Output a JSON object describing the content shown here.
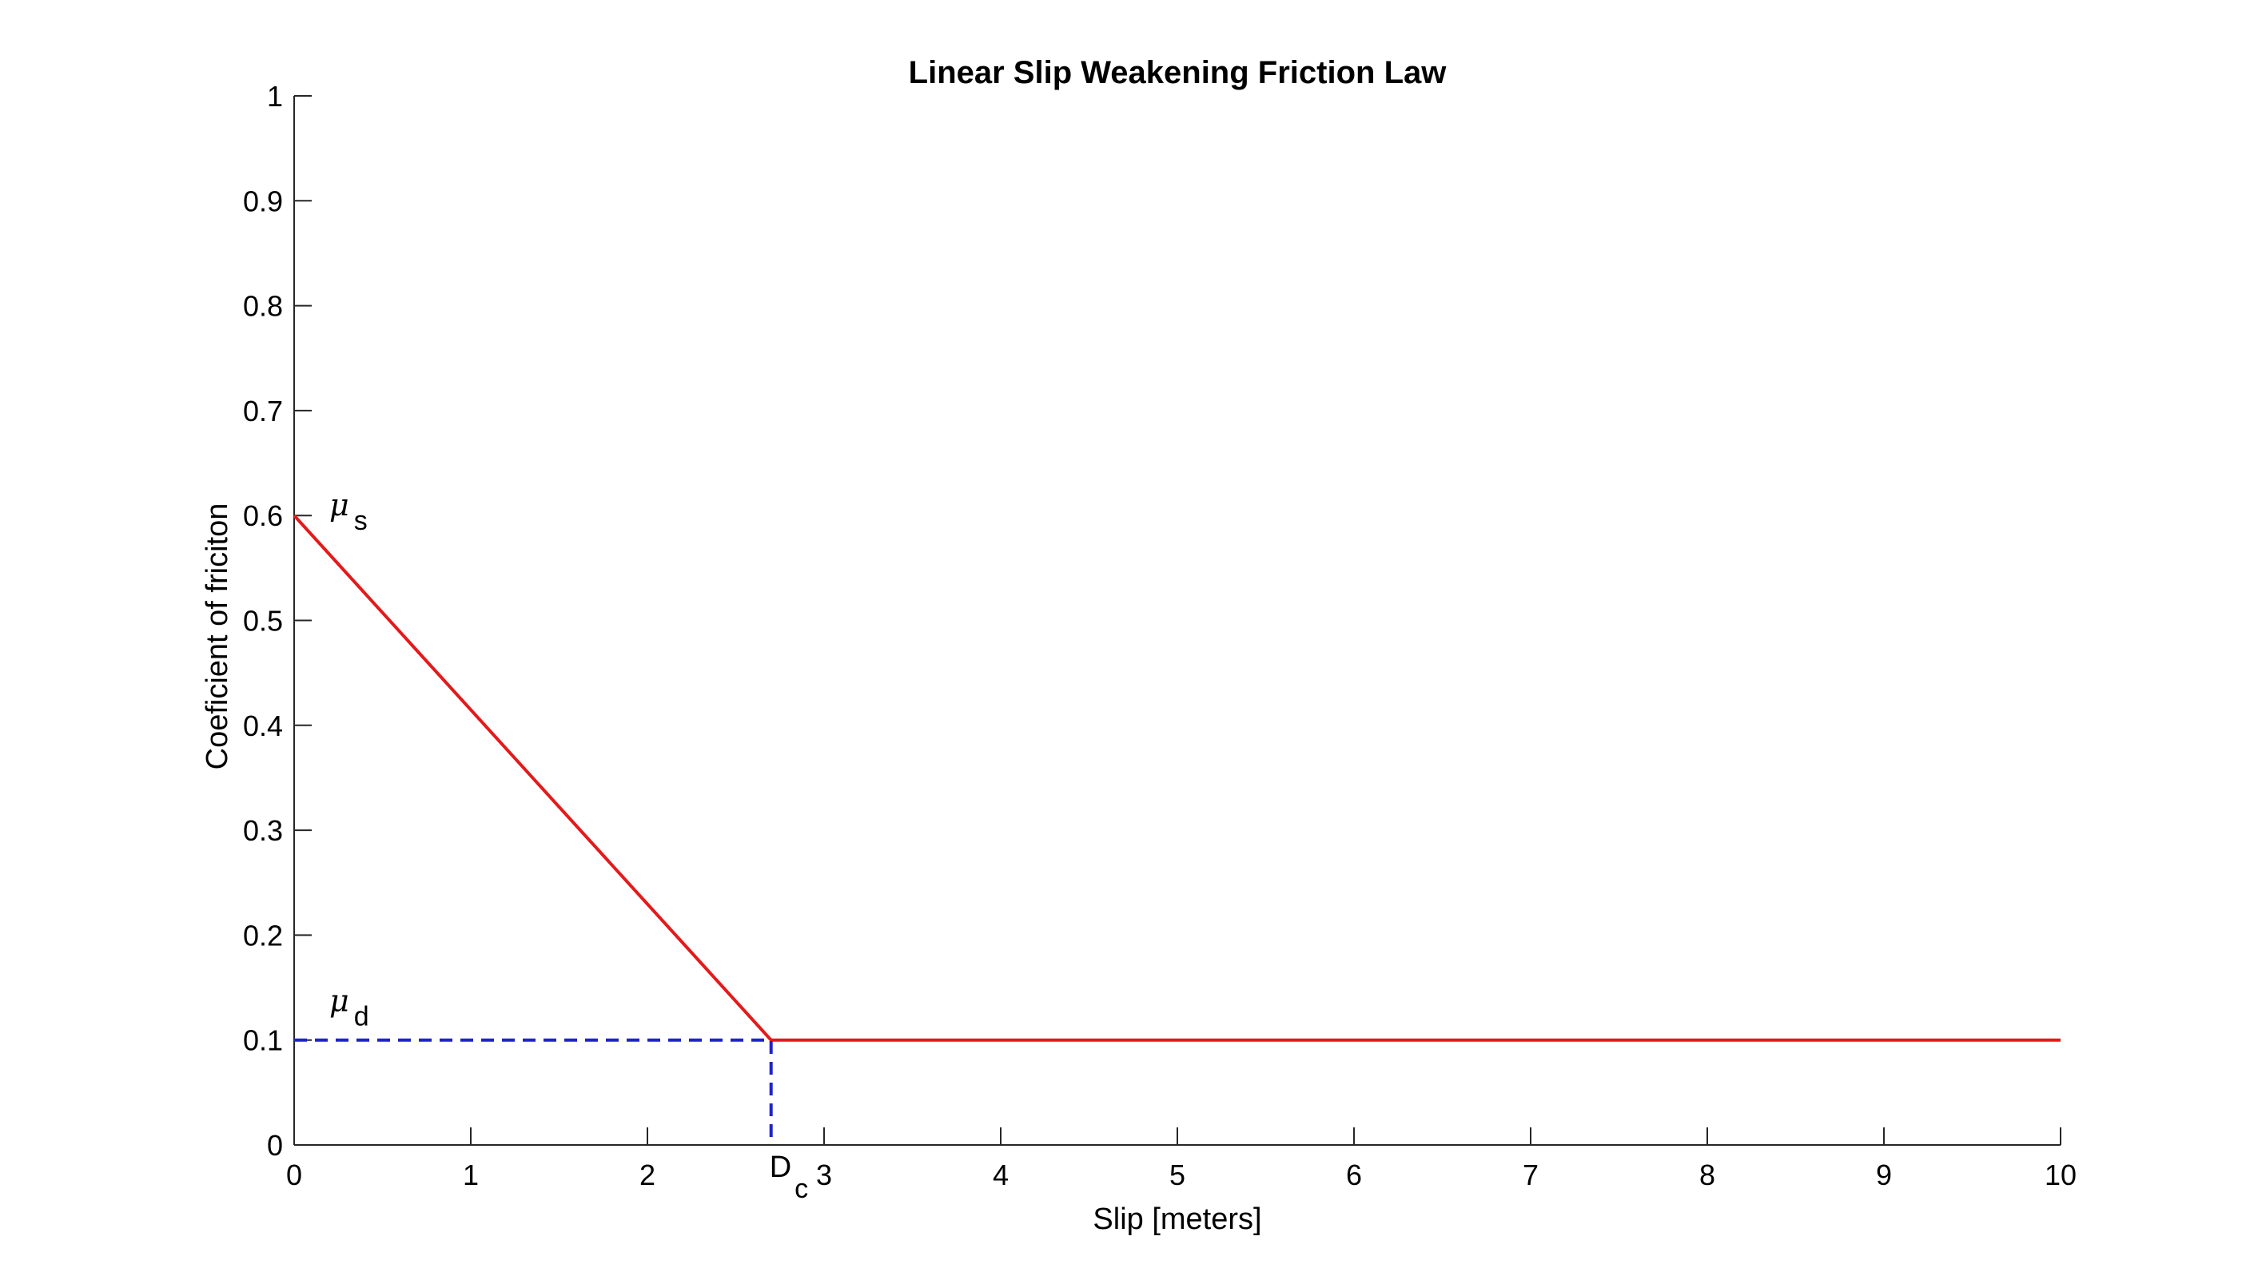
{
  "chart_data": {
    "type": "line",
    "title": "Linear Slip Weakening Friction Law",
    "xlabel": "Slip [meters]",
    "ylabel": "Coeficient of friciton",
    "xlim": [
      0,
      10
    ],
    "ylim": [
      0,
      1
    ],
    "xticks": [
      0,
      1,
      2,
      3,
      4,
      5,
      6,
      7,
      8,
      9,
      10
    ],
    "xtick_labels": [
      "0",
      "1",
      "2",
      "3",
      "4",
      "5",
      "6",
      "7",
      "8",
      "9",
      "10"
    ],
    "yticks": [
      0,
      0.1,
      0.2,
      0.3,
      0.4,
      0.5,
      0.6,
      0.7,
      0.8,
      0.9,
      1
    ],
    "ytick_labels": [
      "0",
      "0.1",
      "0.2",
      "0.3",
      "0.4",
      "0.5",
      "0.6",
      "0.7",
      "0.8",
      "0.9",
      "1"
    ],
    "grid": false,
    "series": [
      {
        "style": "solid",
        "color": "#e31a1c",
        "x": [
          0,
          2.7,
          10
        ],
        "y": [
          0.6,
          0.1,
          0.1
        ]
      },
      {
        "style": "dashed",
        "color": "#1f24c8",
        "x": [
          0,
          2.7,
          2.7
        ],
        "y": [
          0.1,
          0.1,
          0
        ]
      }
    ],
    "annotations": [
      {
        "symbol": "μ",
        "subscript": "s",
        "x": 0.2,
        "y": 0.6
      },
      {
        "symbol": "μ",
        "subscript": "d",
        "x": 0.2,
        "y": 0.1
      },
      {
        "symbol": "D",
        "subscript": "c",
        "x": 2.7,
        "y": 0
      }
    ]
  }
}
